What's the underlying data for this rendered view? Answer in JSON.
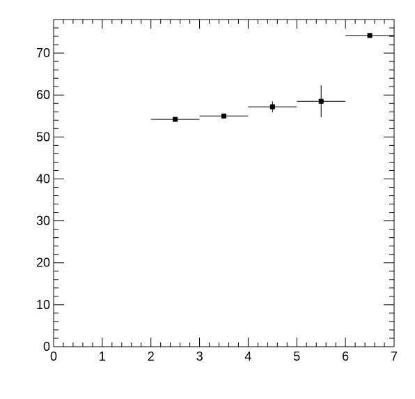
{
  "chart_data": {
    "type": "scatter",
    "title": "",
    "xlabel": "",
    "ylabel": "",
    "xlim": [
      0,
      7
    ],
    "ylim": [
      0,
      78
    ],
    "grid": false,
    "x_ticks": [
      0,
      1,
      2,
      3,
      4,
      5,
      6,
      7
    ],
    "y_ticks": [
      0,
      10,
      20,
      30,
      40,
      50,
      60,
      70
    ],
    "x_tick_labels": [
      "0",
      "1",
      "2",
      "3",
      "4",
      "5",
      "6",
      "7"
    ],
    "y_tick_labels": [
      "0",
      "10",
      "20",
      "30",
      "40",
      "50",
      "60",
      "70"
    ],
    "series": [
      {
        "marker": "square",
        "color": "#000000",
        "points": [
          {
            "x": 2.5,
            "y": 54.2,
            "x_err": 0.5,
            "y_err": 0.4
          },
          {
            "x": 3.5,
            "y": 55.0,
            "x_err": 0.5,
            "y_err": 0.5
          },
          {
            "x": 4.5,
            "y": 57.2,
            "x_err": 0.5,
            "y_err": 1.3
          },
          {
            "x": 5.5,
            "y": 58.5,
            "x_err": 0.5,
            "y_err": 3.8
          },
          {
            "x": 6.5,
            "y": 74.2,
            "x_err": 0.5,
            "y_err": 0.3
          }
        ]
      }
    ]
  }
}
